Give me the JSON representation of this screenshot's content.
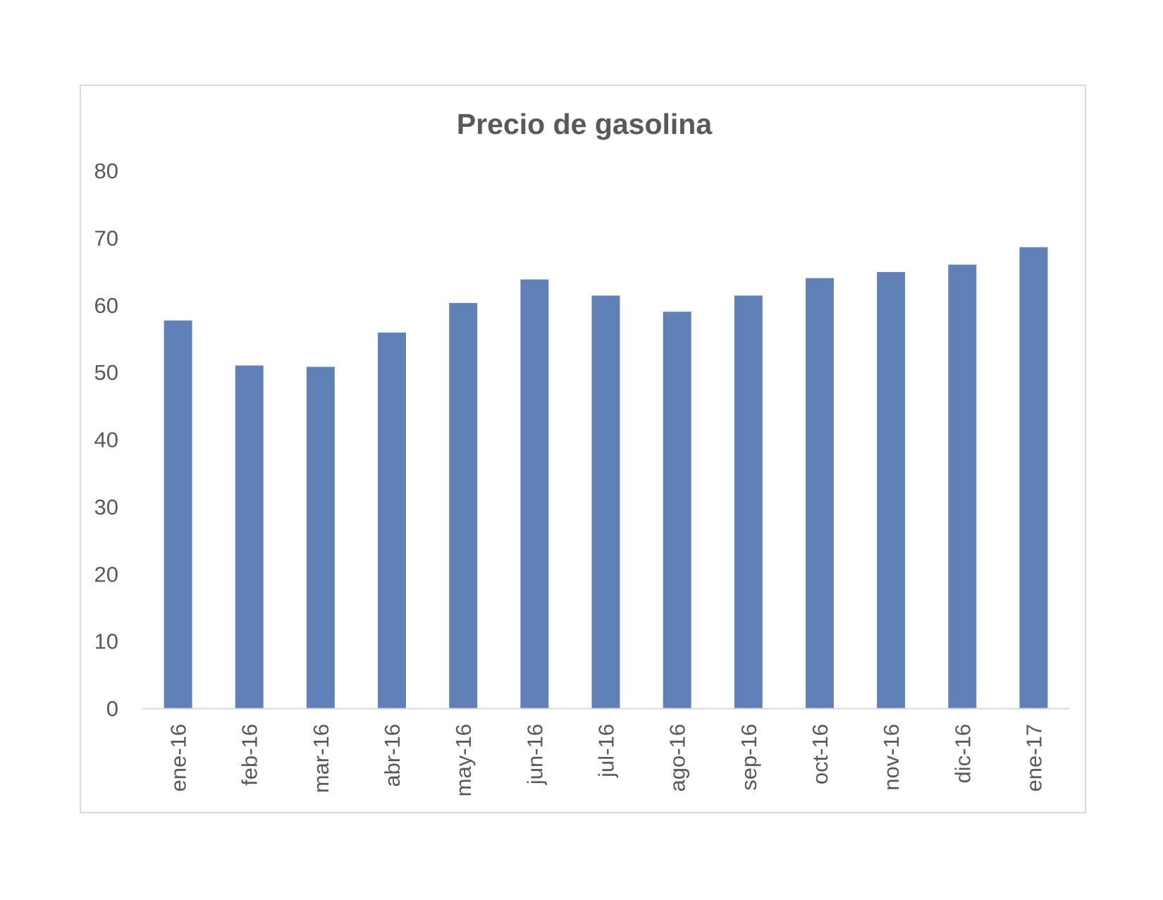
{
  "chart_data": {
    "type": "bar",
    "title": "Precio de gasolina",
    "xlabel": "",
    "ylabel": "",
    "categories": [
      "ene-16",
      "feb-16",
      "mar-16",
      "abr-16",
      "may-16",
      "jun-16",
      "jul-16",
      "ago-16",
      "sep-16",
      "oct-16",
      "nov-16",
      "dic-16",
      "ene-17"
    ],
    "values": [
      57.7,
      51.0,
      50.8,
      55.9,
      60.3,
      63.8,
      61.4,
      59.0,
      61.4,
      64.0,
      64.9,
      66.0,
      68.6
    ],
    "ylim": [
      0,
      80
    ],
    "yticks": [
      0,
      10,
      20,
      30,
      40,
      50,
      60,
      70,
      80
    ],
    "grid": false,
    "legend": "none",
    "bar_color": "#6080b8",
    "axis_color": "#d9d9d9",
    "text_color": "#595959"
  }
}
